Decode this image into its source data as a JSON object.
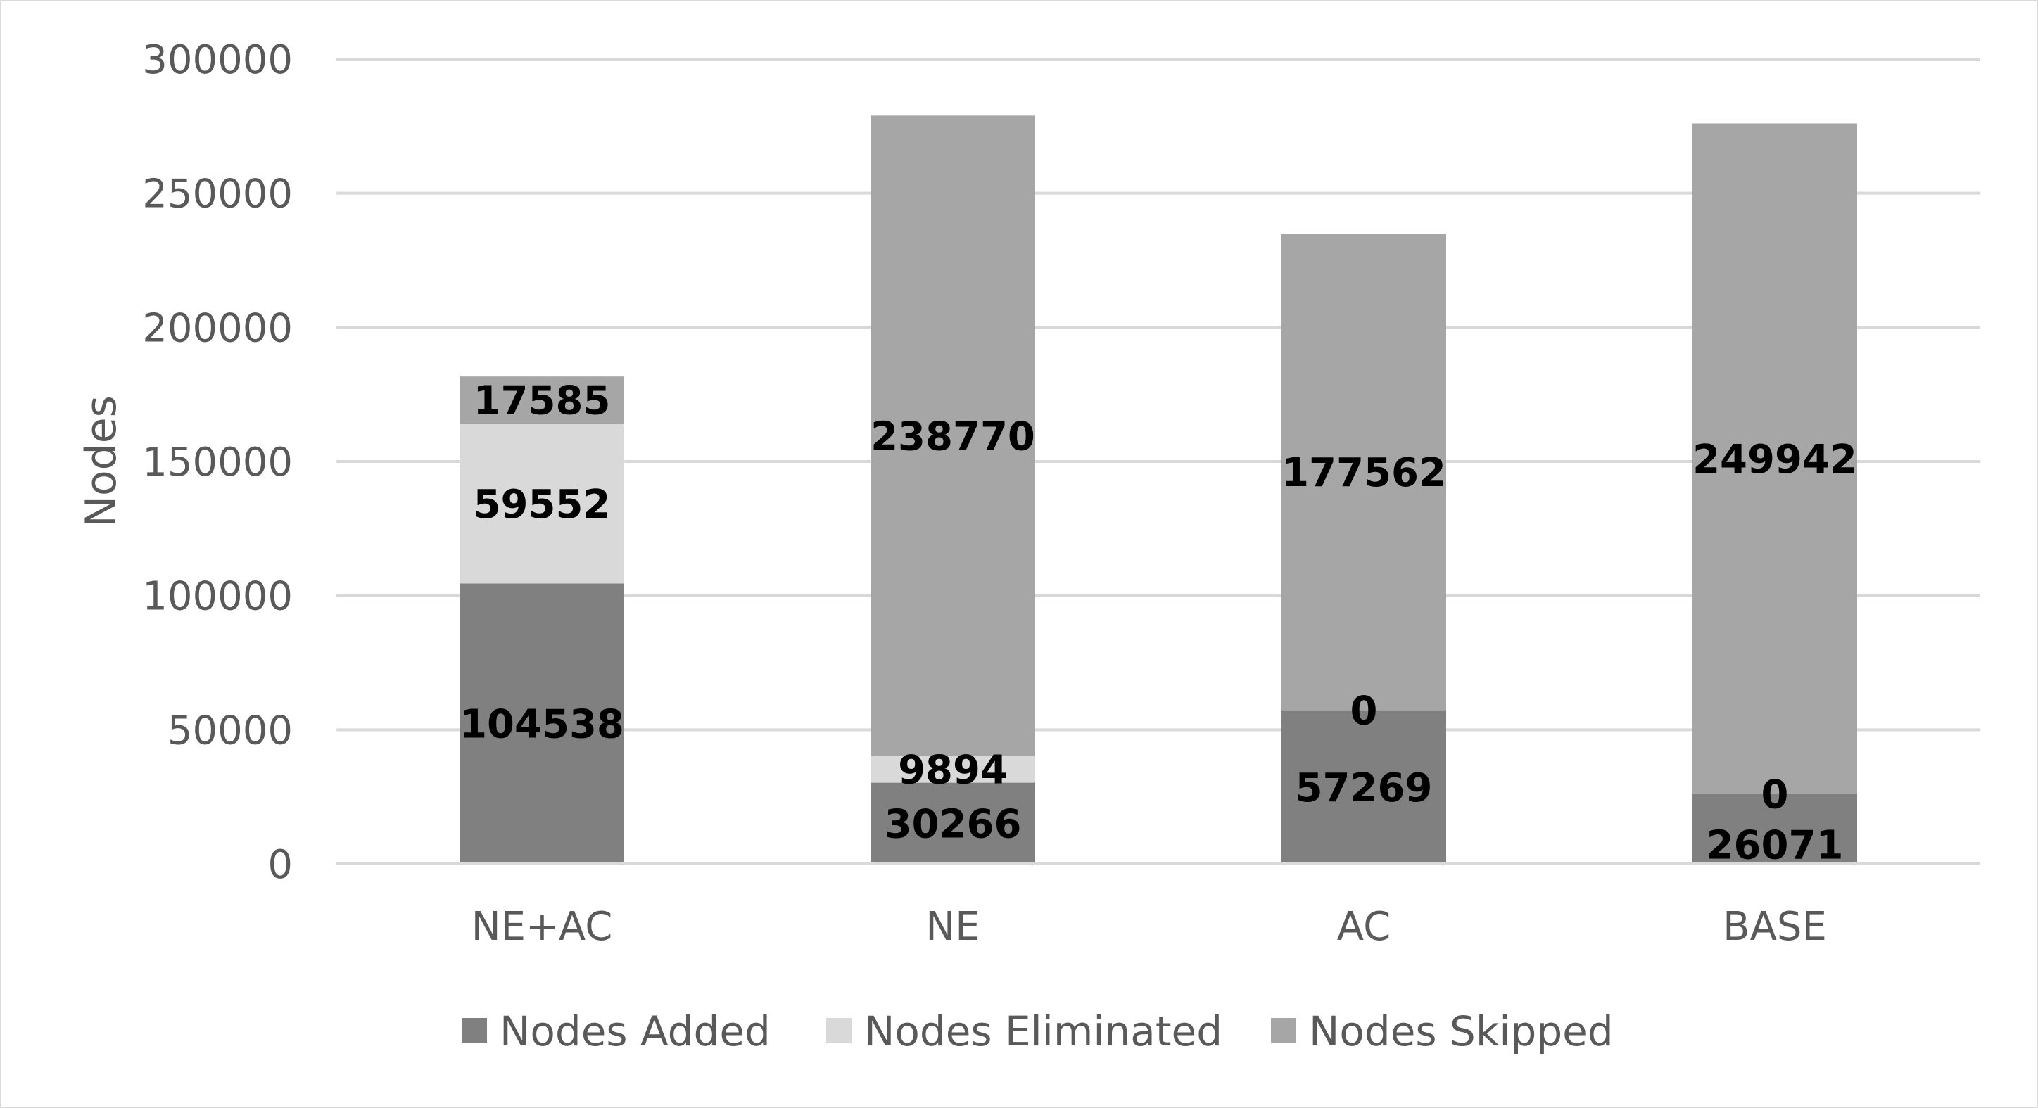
{
  "chart_data": {
    "type": "bar",
    "stacked": true,
    "categories": [
      "NE+AC",
      "NE",
      "AC",
      "BASE"
    ],
    "series": [
      {
        "name": "Nodes Added",
        "color": "#808080",
        "values": [
          104538,
          30266,
          57269,
          26071
        ]
      },
      {
        "name": "Nodes Eliminated",
        "color": "#d9d9d9",
        "values": [
          59552,
          9894,
          0,
          0
        ]
      },
      {
        "name": "Nodes Skipped",
        "color": "#a6a6a6",
        "values": [
          17585,
          238770,
          177562,
          249942
        ]
      }
    ],
    "data_labels": [
      [
        "104538",
        "30266",
        "57269",
        "26071"
      ],
      [
        "59552",
        "9894",
        "0",
        "0"
      ],
      [
        "17585",
        "238770",
        "177562",
        "249942"
      ]
    ],
    "ylabel": "Nodes",
    "xlabel": "",
    "ylim": [
      0,
      300000
    ],
    "yticks": [
      "0",
      "50000",
      "100000",
      "150000",
      "200000",
      "250000",
      "300000"
    ],
    "grid": true,
    "legend_position": "bottom"
  }
}
